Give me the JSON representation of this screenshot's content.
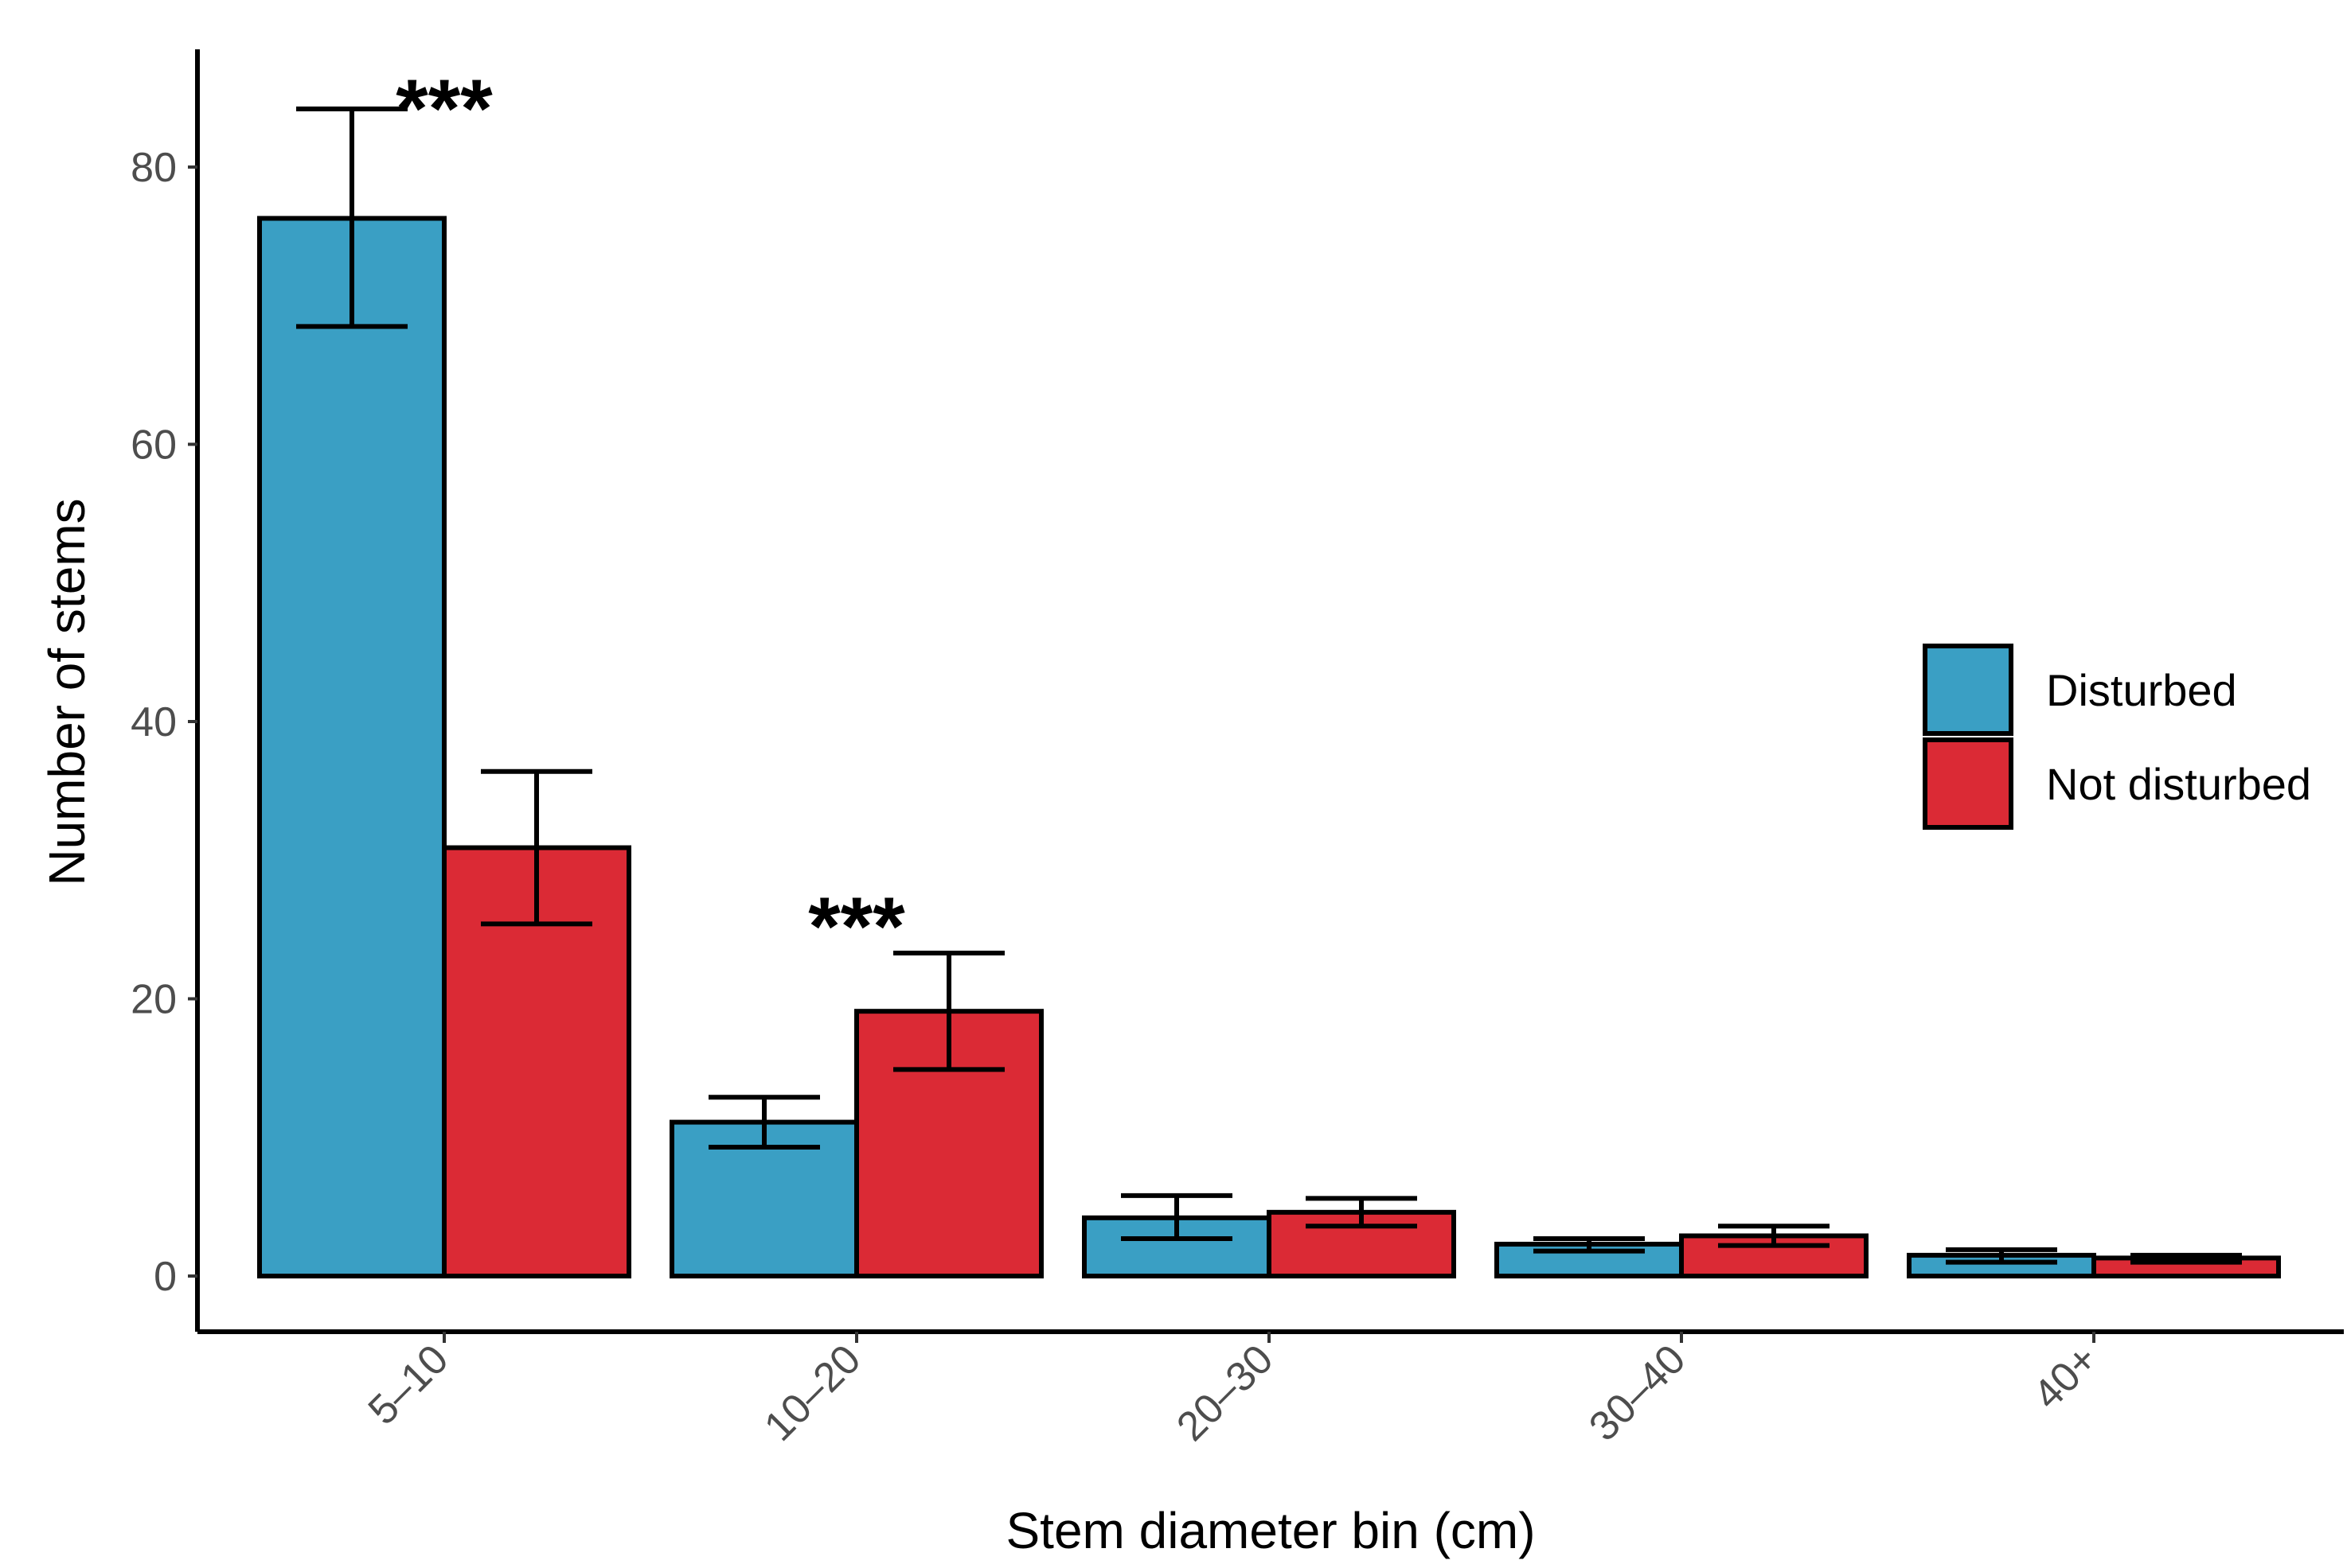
{
  "chart_data": {
    "type": "bar",
    "title": "",
    "xlabel": "Stem diameter bin (cm)",
    "ylabel": "Number of stems",
    "categories": [
      "5–10",
      "10–20",
      "20–30",
      "30–40",
      "40+"
    ],
    "ylim": [
      -4,
      88
    ],
    "yticks": [
      0,
      20,
      40,
      60,
      80
    ],
    "grid": false,
    "legend_position": "right",
    "series": [
      {
        "name": "Disturbed",
        "color": "#3A9FC4",
        "values": [
          76.3,
          11.1,
          4.2,
          2.3,
          1.5
        ],
        "err_low": [
          68.5,
          9.3,
          2.7,
          1.8,
          1.0
        ],
        "err_high": [
          84.2,
          12.9,
          5.8,
          2.7,
          1.9
        ]
      },
      {
        "name": "Not disturbed",
        "color": "#DB2A35",
        "values": [
          30.9,
          19.1,
          4.6,
          2.9,
          1.3
        ],
        "err_low": [
          25.4,
          14.9,
          3.6,
          2.2,
          1.0
        ],
        "err_high": [
          36.4,
          23.3,
          5.6,
          3.6,
          1.5
        ]
      }
    ],
    "annotations": [
      {
        "text": "***",
        "category_index": 0,
        "y": 85.5
      },
      {
        "text": "***",
        "category_index": 1,
        "y": 26.5
      }
    ]
  }
}
